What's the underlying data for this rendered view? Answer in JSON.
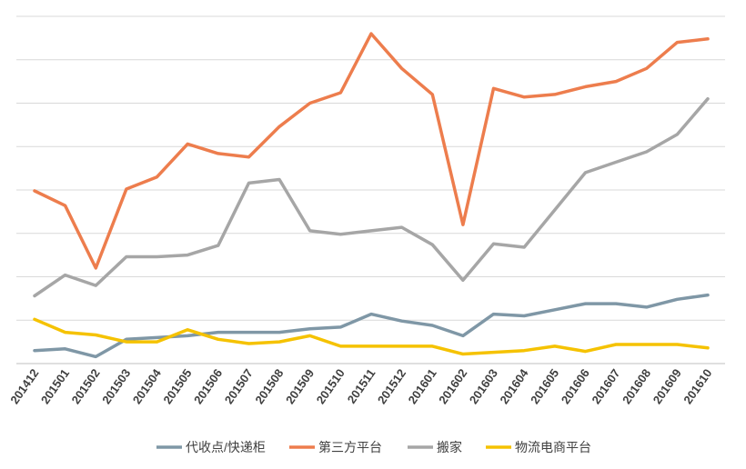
{
  "chart_data": {
    "type": "line",
    "title": "",
    "xlabel": "",
    "ylabel": "",
    "ylim": [
      0,
      8
    ],
    "grid": true,
    "legend_position": "bottom",
    "categories": [
      "201412",
      "201501",
      "201502",
      "201503",
      "201504",
      "201505",
      "201506",
      "201507",
      "201508",
      "201509",
      "201510",
      "201511",
      "201512",
      "201601",
      "201602",
      "201603",
      "201604",
      "201605",
      "201606",
      "201607",
      "201608",
      "201609",
      "201610"
    ],
    "series": [
      {
        "name": "代收点/快递柜",
        "color": "#7f97a6",
        "values": [
          0.3,
          0.34,
          0.16,
          0.56,
          0.6,
          0.64,
          0.72,
          0.72,
          0.72,
          0.8,
          0.84,
          1.14,
          0.98,
          0.88,
          0.64,
          1.14,
          1.1,
          1.24,
          1.38,
          1.38,
          1.3,
          1.48,
          1.58
        ]
      },
      {
        "name": "第三方平台",
        "color": "#ed7d4d",
        "values": [
          3.98,
          3.64,
          2.2,
          4.02,
          4.3,
          5.06,
          4.84,
          4.76,
          5.46,
          6.0,
          6.24,
          7.6,
          6.8,
          6.2,
          3.2,
          6.34,
          6.14,
          6.2,
          6.38,
          6.5,
          6.8,
          7.4,
          7.48
        ]
      },
      {
        "name": "搬家",
        "color": "#a6a6a6",
        "values": [
          1.56,
          2.04,
          1.8,
          2.46,
          2.46,
          2.5,
          2.72,
          4.16,
          4.24,
          3.06,
          2.98,
          3.06,
          3.14,
          2.74,
          1.92,
          2.76,
          2.68,
          3.54,
          4.4,
          4.64,
          4.88,
          5.28,
          6.1
        ]
      },
      {
        "name": "物流电商平台",
        "color": "#f5c200",
        "values": [
          1.02,
          0.72,
          0.66,
          0.5,
          0.5,
          0.78,
          0.56,
          0.46,
          0.5,
          0.64,
          0.4,
          0.4,
          0.4,
          0.4,
          0.22,
          0.26,
          0.3,
          0.4,
          0.28,
          0.44,
          0.44,
          0.44,
          0.36
        ]
      }
    ]
  }
}
